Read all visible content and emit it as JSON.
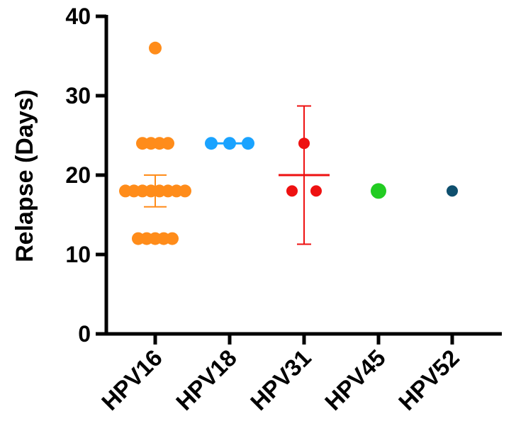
{
  "chart_data": {
    "type": "scatter",
    "subtype": "dot-plot-with-mean-and-error-bars",
    "title": "",
    "xlabel": "",
    "ylabel": "Relapse (Days)",
    "ylim": [
      0,
      40
    ],
    "yticks": [
      "0",
      "10",
      "20",
      "30",
      "40"
    ],
    "grid": false,
    "categories": [
      "HPV16",
      "HPV18",
      "HPV31",
      "HPV45",
      "HPV52"
    ],
    "series": [
      {
        "category": "HPV16",
        "color": "#ff8c1a",
        "points": [
          {
            "y": 36,
            "count": 1
          },
          {
            "y": 24,
            "count": 4
          },
          {
            "y": 18,
            "count": 8
          },
          {
            "y": 12,
            "count": 5
          }
        ],
        "mean": 18,
        "error": [
          16,
          20
        ]
      },
      {
        "category": "HPV18",
        "color": "#1aa3ff",
        "points": [
          {
            "y": 24,
            "count": 3
          }
        ],
        "mean": 24,
        "error": [
          24,
          24
        ]
      },
      {
        "category": "HPV31",
        "color": "#ee1111",
        "points": [
          {
            "y": 24,
            "count": 1
          },
          {
            "y": 18,
            "count": 2
          }
        ],
        "mean": 20,
        "error": [
          11.3,
          28.7
        ]
      },
      {
        "category": "HPV45",
        "color": "#22cc22",
        "points": [
          {
            "y": 18,
            "count": 1
          }
        ]
      },
      {
        "category": "HPV52",
        "color": "#0e4f6e",
        "points": [
          {
            "y": 18,
            "count": 1
          }
        ]
      }
    ]
  }
}
